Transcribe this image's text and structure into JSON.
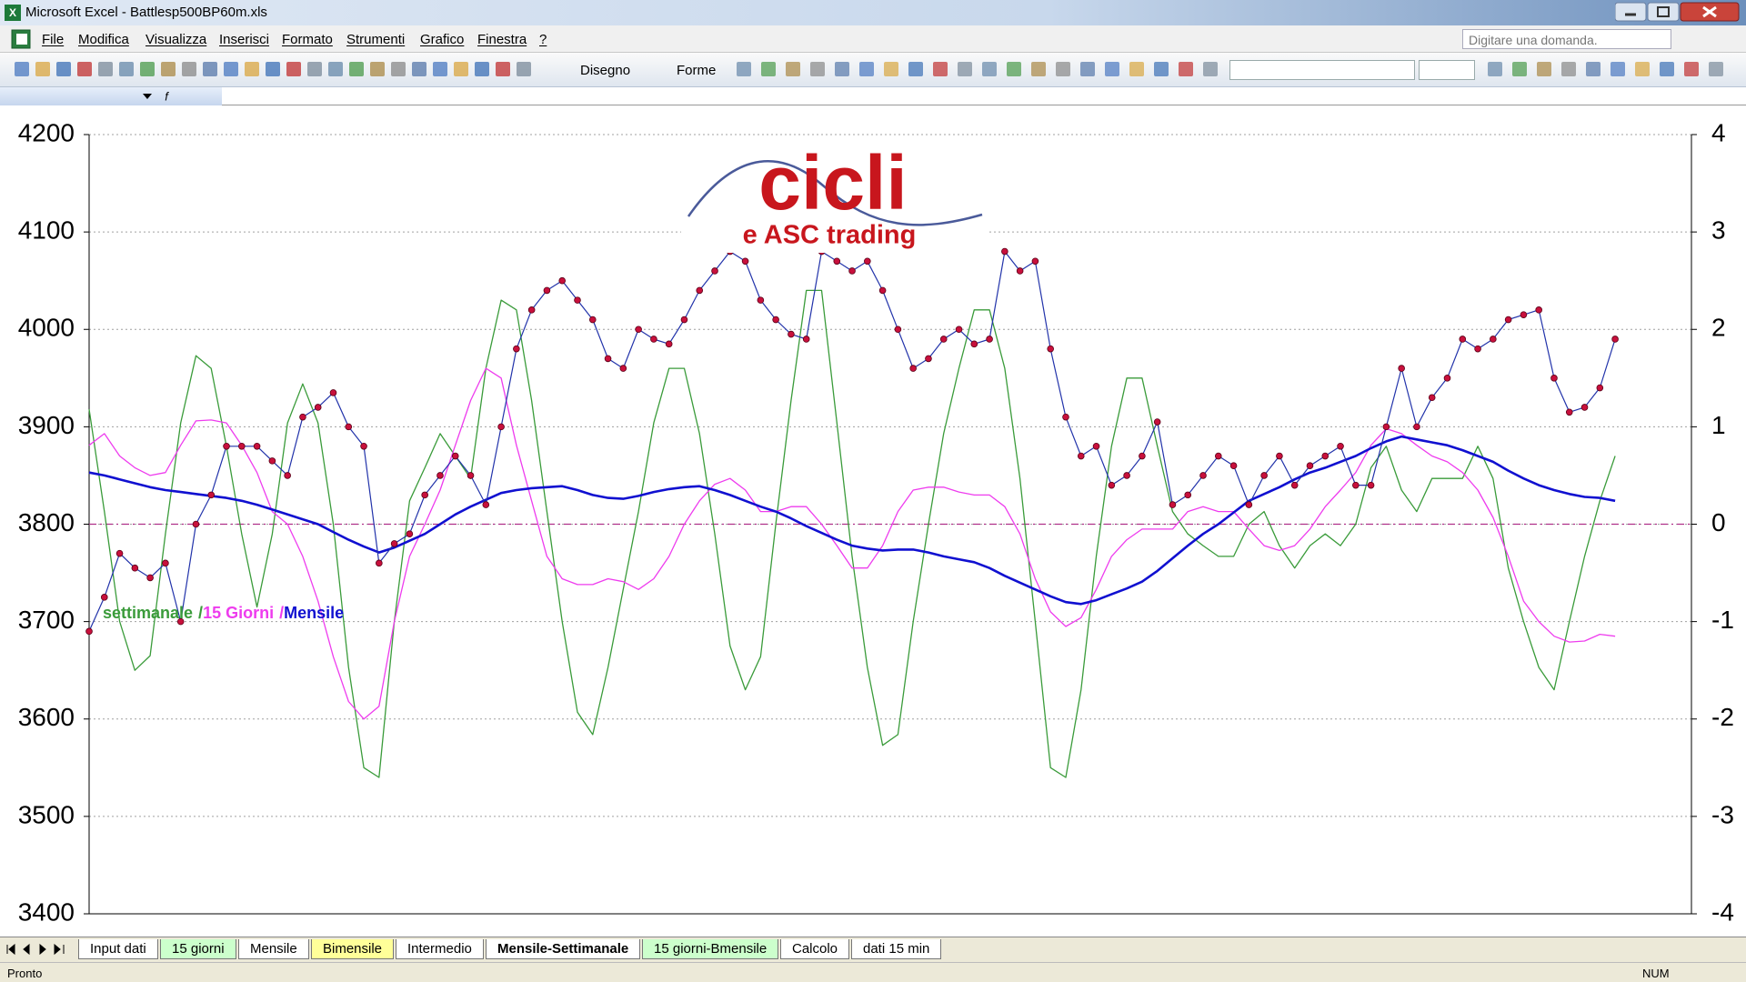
{
  "window_title": "Microsoft Excel - Battlesp500BP60m.xls",
  "menu": [
    "File",
    "Modifica",
    "Visualizza",
    "Inserisci",
    "Formato",
    "Strumenti",
    "Grafico",
    "Finestra",
    "?"
  ],
  "help_prompt": "Digitare una domanda.",
  "toolbar_labels": [
    "Disegno",
    "Forme"
  ],
  "sheet_tabs": [
    {
      "name": "Input dati",
      "color": "#ffffff"
    },
    {
      "name": "15 giorni",
      "color": "#ccffcc"
    },
    {
      "name": "Mensile",
      "color": "#ffffff"
    },
    {
      "name": "Bimensile",
      "color": "#ffff99"
    },
    {
      "name": "Intermedio",
      "color": "#ffffff"
    },
    {
      "name": "Mensile-Settimanale",
      "color": "#ffffff",
      "active": true
    },
    {
      "name": "15 giorni-Bmensile",
      "color": "#ccffcc"
    },
    {
      "name": "Calcolo",
      "color": "#ffffff"
    },
    {
      "name": "dati 15 min",
      "color": "#ffffff"
    }
  ],
  "status": [
    "Pronto",
    "NUM"
  ],
  "chart_data": {
    "type": "line",
    "logo_text": "cicli",
    "logo_subtext": "e ASC trading",
    "legend_separator": "/",
    "grid": true,
    "xlim": [
      0,
      105
    ],
    "ylim": [
      3400,
      4200
    ],
    "yticks": [
      3400,
      3500,
      3600,
      3700,
      3800,
      3900,
      4000,
      4100,
      4200
    ],
    "y2lim": [
      -4,
      4
    ],
    "y2ticks": [
      -4,
      -3,
      -2,
      -1,
      0,
      1,
      2,
      3,
      4
    ],
    "reference_line": {
      "axis": "y2",
      "value": 0,
      "color": "#b0308a"
    },
    "x": [
      0,
      1,
      2,
      3,
      4,
      5,
      6,
      7,
      8,
      9,
      10,
      11,
      12,
      13,
      14,
      15,
      16,
      17,
      18,
      19,
      20,
      21,
      22,
      23,
      24,
      25,
      26,
      27,
      28,
      29,
      30,
      31,
      32,
      33,
      34,
      35,
      36,
      37,
      38,
      39,
      40,
      41,
      42,
      43,
      44,
      45,
      46,
      47,
      48,
      49,
      50,
      51,
      52,
      53,
      54,
      55,
      56,
      57,
      58,
      59,
      60,
      61,
      62,
      63,
      64,
      65,
      66,
      67,
      68,
      69,
      70,
      71,
      72,
      73,
      74,
      75,
      76,
      77,
      78,
      79,
      80,
      81,
      82,
      83,
      84,
      85,
      86,
      87,
      88,
      89,
      90,
      91,
      92,
      93,
      94,
      95,
      96,
      97,
      98,
      99,
      100
    ],
    "series": [
      {
        "color": "#2233aa",
        "marker_color": "#c8103c",
        "values": [
          3690,
          3725,
          3770,
          3755,
          3745,
          3760,
          3700,
          3800,
          3830,
          3880,
          3880,
          3880,
          3865,
          3850,
          3910,
          3920,
          3935,
          3900,
          3880,
          3760,
          3780,
          3790,
          3830,
          3850,
          3870,
          3850,
          3820,
          3900,
          3980,
          4020,
          4040,
          4050,
          4030,
          4010,
          3970,
          3960,
          4000,
          3990,
          3985,
          4010,
          4040,
          4060,
          4080,
          4070,
          4030,
          4010,
          3995,
          3990,
          4080,
          4070,
          4060,
          4070,
          4040,
          4000,
          3960,
          3970,
          3990,
          4000,
          3985,
          3990,
          4080,
          4060,
          4070,
          3980,
          3910,
          3870,
          3880,
          3840,
          3850,
          3870,
          3905,
          3820,
          3830,
          3850,
          3870,
          3860,
          3820,
          3850,
          3870,
          3840,
          3860,
          3870,
          3880,
          3840,
          3840,
          3900,
          3960,
          3900,
          3930,
          3950,
          3990,
          3980,
          3990,
          4010,
          4015,
          4020,
          3950,
          3915,
          3920,
          3940,
          3990
        ]
      },
      {
        "name": "settimanale",
        "color": "#3a9b3a",
        "axis": "y2",
        "values": [
          1.18,
          0.13,
          -1.0,
          -1.5,
          -1.35,
          -0.1,
          1.04,
          1.73,
          1.6,
          0.8,
          -0.1,
          -0.85,
          -0.1,
          1.04,
          1.44,
          1.04,
          0,
          -1.47,
          -2.5,
          -2.6,
          -1.0,
          0.24,
          0.58,
          0.93,
          0.7,
          0.47,
          1.6,
          2.3,
          2.2,
          1.27,
          0.13,
          -1.0,
          -1.93,
          -2.16,
          -1.47,
          -0.67,
          0.13,
          1.04,
          1.6,
          1.6,
          0.93,
          -0.1,
          -1.25,
          -1.7,
          -1.36,
          0,
          1.27,
          2.4,
          2.4,
          1.04,
          -0.33,
          -1.47,
          -2.27,
          -2.16,
          -1.0,
          0,
          0.93,
          1.6,
          2.2,
          2.2,
          1.6,
          0.47,
          -1.0,
          -2.5,
          -2.6,
          -1.7,
          -0.33,
          0.8,
          1.5,
          1.5,
          0.8,
          0.13,
          -0.1,
          -0.22,
          -0.33,
          -0.33,
          0,
          0.13,
          -0.22,
          -0.45,
          -0.22,
          -0.1,
          -0.22,
          0,
          0.58,
          0.8,
          0.35,
          0.13,
          0.47,
          0.47,
          0.47,
          0.8,
          0.47,
          -0.45,
          -1.0,
          -1.47,
          -1.7,
          -1.0,
          -0.33,
          0.24,
          0.7
        ]
      },
      {
        "name": "15 Giorni",
        "color": "#ee3cee",
        "axis": "y2",
        "values": [
          0.81,
          0.93,
          0.7,
          0.58,
          0.5,
          0.53,
          0.81,
          1.06,
          1.07,
          1.04,
          0.81,
          0.53,
          0.13,
          0,
          -0.33,
          -0.79,
          -1.36,
          -1.82,
          -2.0,
          -1.87,
          -1.0,
          -0.33,
          0,
          0.35,
          0.81,
          1.27,
          1.6,
          1.5,
          0.81,
          0.24,
          -0.33,
          -0.56,
          -0.62,
          -0.62,
          -0.56,
          -0.59,
          -0.67,
          -0.56,
          -0.33,
          0,
          0.24,
          0.41,
          0.47,
          0.35,
          0.13,
          0.13,
          0.18,
          0.18,
          0,
          -0.22,
          -0.45,
          -0.45,
          -0.22,
          0.13,
          0.35,
          0.38,
          0.38,
          0.33,
          0.3,
          0.3,
          0.18,
          -0.1,
          -0.56,
          -0.9,
          -1.05,
          -0.96,
          -0.67,
          -0.33,
          -0.16,
          -0.05,
          -0.05,
          -0.05,
          0.13,
          0.18,
          0.13,
          0.13,
          -0.05,
          -0.22,
          -0.27,
          -0.22,
          -0.05,
          0.18,
          0.35,
          0.53,
          0.81,
          0.98,
          0.93,
          0.81,
          0.7,
          0.64,
          0.53,
          0.35,
          0.07,
          -0.33,
          -0.79,
          -1.0,
          -1.15,
          -1.21,
          -1.2,
          -1.13,
          -1.15
        ]
      },
      {
        "name": "Mensile",
        "color": "#1010d0",
        "axis": "y2",
        "values": [
          0.53,
          0.5,
          0.46,
          0.42,
          0.38,
          0.35,
          0.33,
          0.31,
          0.29,
          0.27,
          0.24,
          0.2,
          0.15,
          0.1,
          0.05,
          0,
          -0.08,
          -0.16,
          -0.23,
          -0.29,
          -0.24,
          -0.17,
          -0.1,
          0,
          0.1,
          0.18,
          0.25,
          0.32,
          0.35,
          0.37,
          0.38,
          0.39,
          0.35,
          0.3,
          0.27,
          0.26,
          0.29,
          0.33,
          0.36,
          0.38,
          0.39,
          0.35,
          0.3,
          0.24,
          0.18,
          0.13,
          0.06,
          -0.02,
          -0.09,
          -0.16,
          -0.22,
          -0.25,
          -0.27,
          -0.26,
          -0.26,
          -0.29,
          -0.33,
          -0.36,
          -0.39,
          -0.45,
          -0.53,
          -0.6,
          -0.67,
          -0.74,
          -0.8,
          -0.82,
          -0.78,
          -0.72,
          -0.66,
          -0.59,
          -0.48,
          -0.35,
          -0.22,
          -0.1,
          0,
          0.12,
          0.24,
          0.31,
          0.38,
          0.46,
          0.53,
          0.58,
          0.64,
          0.7,
          0.78,
          0.85,
          0.9,
          0.87,
          0.84,
          0.81,
          0.76,
          0.7,
          0.64,
          0.55,
          0.47,
          0.4,
          0.35,
          0.31,
          0.28,
          0.27,
          0.24
        ]
      }
    ]
  }
}
